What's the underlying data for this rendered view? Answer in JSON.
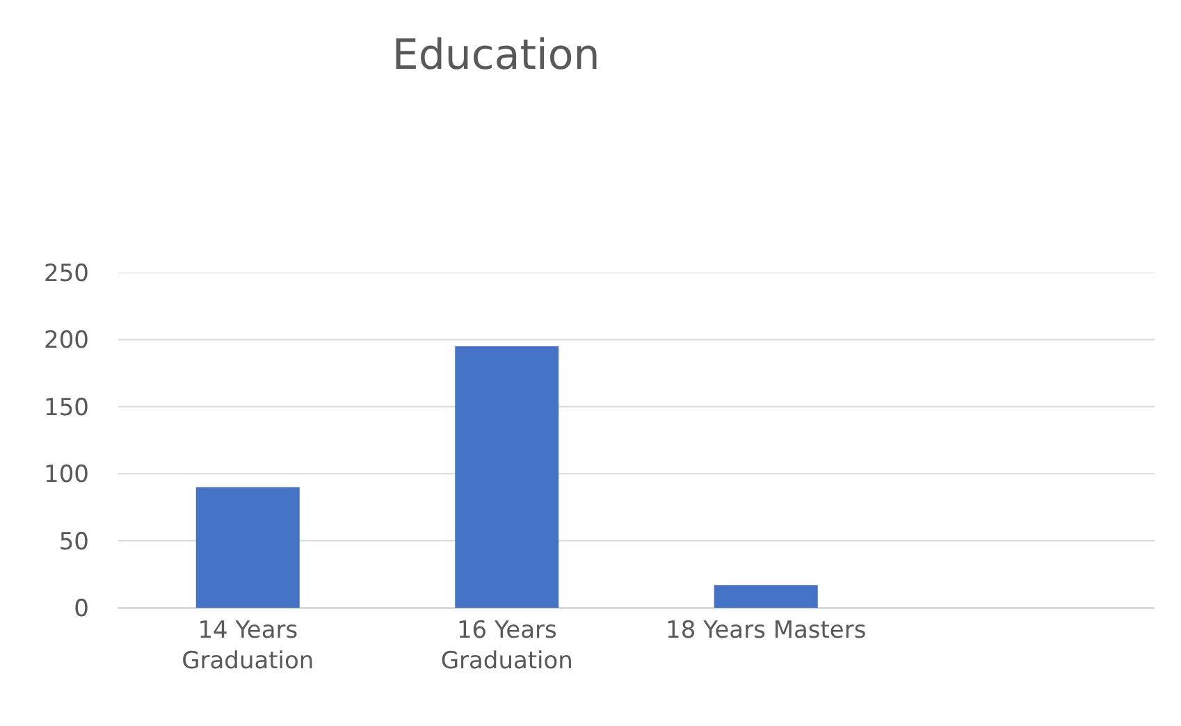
{
  "chart_data": {
    "type": "bar",
    "title": "Education",
    "categories": [
      "14 Years\nGraduation",
      "16 Years\nGraduation",
      "18 Years Masters",
      null
    ],
    "values": [
      90,
      195,
      17,
      null
    ],
    "color": "#4472c4",
    "ylim": [
      0,
      250
    ],
    "yticks": [
      0,
      50,
      100,
      150,
      200,
      250
    ],
    "grid": "y"
  }
}
